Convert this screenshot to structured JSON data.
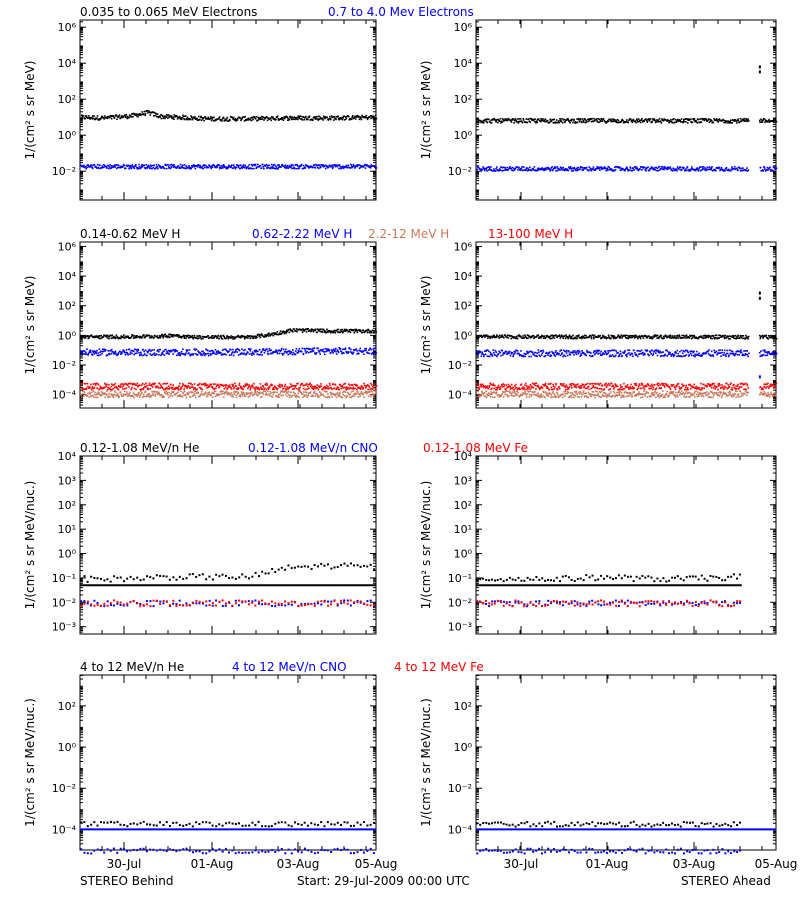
{
  "colors": {
    "black": "#000000",
    "blue": "#0000ff",
    "red": "#ff0000",
    "salmon": "#c8785a",
    "bg": "#ffffff"
  },
  "footer": {
    "left": "STEREO Behind",
    "center": "Start: 29-Jul-2009 00:00 UTC",
    "right": "STEREO Ahead"
  },
  "chart_data": [
    {
      "type": "scatter",
      "title_segments": [
        {
          "text": "0.035 to 0.065 MeV Electrons",
          "color": "#000000"
        },
        {
          "text": "0.7 to 4.0 Mev Electrons",
          "color": "#0000ff"
        }
      ],
      "ylabel": "1/(cm² s sr MeV)",
      "y_scale": "log",
      "y_exp_range": [
        -3.6,
        6.4
      ],
      "y_tick_labels": [
        {
          "exp": -2,
          "label": "10⁻²"
        },
        {
          "exp": 0,
          "label": "10⁰"
        },
        {
          "exp": 2,
          "label": "10²"
        },
        {
          "exp": 4,
          "label": "10⁴"
        },
        {
          "exp": 6,
          "label": "10⁶"
        }
      ],
      "x_tick_labels": [
        "30-Jul",
        "01-Aug",
        "03-Aug",
        "05-Aug"
      ],
      "x_range_days": [
        0,
        7
      ],
      "panels": [
        {
          "name": "STEREO Behind",
          "series": [
            {
              "name": "0.035 to 0.065 MeV Electrons",
              "color": "#000000",
              "x": [
                0,
                0.6,
                1.2,
                1.6,
                1.9,
                2.3,
                3,
                4,
                5,
                6,
                7
              ],
              "y": [
                11,
                10,
                13,
                20,
                12,
                11,
                9,
                9,
                10,
                10,
                11
              ]
            },
            {
              "name": "0.7 to 4.0 Mev Electrons",
              "color": "#0000ff",
              "x": [
                0,
                1,
                2,
                3,
                4,
                5,
                6,
                7
              ],
              "y": [
                0.02,
                0.02,
                0.02,
                0.02,
                0.02,
                0.02,
                0.02,
                0.02
              ]
            }
          ]
        },
        {
          "name": "STEREO Ahead",
          "gap": [
            6.35,
            6.6
          ],
          "series": [
            {
              "name": "0.035 to 0.065 MeV Electrons",
              "color": "#000000",
              "x": [
                0,
                1,
                2,
                3,
                4,
                5,
                6,
                6.3,
                6.65,
                7
              ],
              "y": [
                7,
                7,
                7,
                7,
                7,
                7,
                7,
                7,
                7,
                6.5
              ],
              "outliers": [
                [
                  6.6,
                  7500
                ],
                [
                  6.6,
                  4000
                ]
              ]
            },
            {
              "name": "0.7 to 4.0 Mev Electrons",
              "color": "#0000ff",
              "x": [
                0,
                1,
                2,
                3,
                4,
                5,
                6,
                6.3,
                6.65,
                7
              ],
              "y": [
                0.015,
                0.015,
                0.015,
                0.015,
                0.015,
                0.015,
                0.015,
                0.015,
                0.015,
                0.015
              ]
            }
          ]
        }
      ]
    },
    {
      "type": "scatter",
      "title_segments": [
        {
          "text": "0.14-0.62 MeV H",
          "color": "#000000"
        },
        {
          "text": "0.62-2.22 MeV H",
          "color": "#0000ff"
        },
        {
          "text": "2.2-12 MeV H",
          "color": "#c8785a"
        },
        {
          "text": "13-100 MeV H",
          "color": "#ff0000"
        }
      ],
      "ylabel": "1/(cm² s sr MeV)",
      "y_scale": "log",
      "y_exp_range": [
        -4.9,
        6.3
      ],
      "y_tick_labels": [
        {
          "exp": -4,
          "label": "10⁻⁴"
        },
        {
          "exp": -2,
          "label": "10⁻²"
        },
        {
          "exp": 0,
          "label": "10⁰"
        },
        {
          "exp": 2,
          "label": "10²"
        },
        {
          "exp": 4,
          "label": "10⁴"
        },
        {
          "exp": 6,
          "label": "10⁶"
        }
      ],
      "x_tick_labels": [
        "30-Jul",
        "01-Aug",
        "03-Aug",
        "05-Aug"
      ],
      "x_range_days": [
        0,
        7
      ],
      "panels": [
        {
          "name": "STEREO Behind",
          "series": [
            {
              "name": "0.14-0.62 MeV H",
              "color": "#000000",
              "x": [
                0,
                1,
                2,
                2.2,
                2.5,
                3,
                4,
                4.5,
                5,
                6,
                7
              ],
              "y": [
                0.9,
                0.9,
                1.0,
                1.2,
                0.9,
                0.85,
                0.85,
                1.3,
                2.5,
                2.2,
                2.2
              ]
            },
            {
              "name": "0.62-2.22 MeV H",
              "color": "#0000ff",
              "x": [
                0,
                1,
                2,
                3,
                4,
                5,
                6,
                7
              ],
              "y": [
                0.08,
                0.08,
                0.08,
                0.08,
                0.085,
                0.09,
                0.1,
                0.1
              ]
            },
            {
              "name": "13-100 MeV H",
              "color": "#ff0000",
              "x": [
                0,
                1,
                2,
                3,
                4,
                5,
                6,
                7
              ],
              "y": [
                0.0004,
                0.0004,
                0.0004,
                0.0004,
                0.0004,
                0.0004,
                0.0004,
                0.0004
              ]
            },
            {
              "name": "2.2-12 MeV H",
              "color": "#c8785a",
              "x": [
                0,
                1,
                2,
                3,
                4,
                5,
                6,
                7
              ],
              "y": [
                0.00012,
                0.00012,
                0.00012,
                0.00012,
                0.00012,
                0.00012,
                0.00012,
                0.00012
              ]
            }
          ]
        },
        {
          "name": "STEREO Ahead",
          "gap": [
            6.35,
            6.6
          ],
          "series": [
            {
              "name": "0.14-0.62 MeV H",
              "color": "#000000",
              "x": [
                0,
                1,
                2,
                3,
                4,
                5,
                6,
                6.3,
                6.65,
                7
              ],
              "y": [
                0.9,
                0.9,
                0.9,
                0.9,
                0.9,
                0.9,
                0.85,
                0.85,
                0.85,
                0.85
              ],
              "outliers": [
                [
                  6.6,
                  900
                ],
                [
                  6.6,
                  400
                ]
              ]
            },
            {
              "name": "0.62-2.22 MeV H",
              "color": "#0000ff",
              "x": [
                0,
                1,
                2,
                3,
                4,
                5,
                6,
                6.3,
                6.65,
                7
              ],
              "y": [
                0.07,
                0.07,
                0.07,
                0.07,
                0.07,
                0.07,
                0.07,
                0.07,
                0.07,
                0.07
              ],
              "outliers": [
                [
                  6.6,
                  0.002
                ]
              ]
            },
            {
              "name": "13-100 MeV H",
              "color": "#ff0000",
              "x": [
                0,
                1,
                2,
                3,
                4,
                5,
                6,
                6.3,
                6.65,
                7
              ],
              "y": [
                0.0004,
                0.0004,
                0.0004,
                0.0004,
                0.0004,
                0.0004,
                0.0004,
                0.0004,
                0.0004,
                0.0004
              ]
            },
            {
              "name": "2.2-12 MeV H",
              "color": "#c8785a",
              "x": [
                0,
                1,
                2,
                3,
                4,
                5,
                6,
                6.3,
                6.65,
                7
              ],
              "y": [
                0.00012,
                0.00012,
                0.00012,
                0.00012,
                0.00012,
                0.00012,
                0.00012,
                0.00012,
                0.00012,
                0.00012
              ]
            }
          ]
        }
      ]
    },
    {
      "type": "scatter",
      "title_segments": [
        {
          "text": "0.12-1.08 MeV/n He",
          "color": "#000000"
        },
        {
          "text": "0.12-1.08 MeV/n CNO",
          "color": "#0000ff"
        },
        {
          "text": "0.12-1.08 MeV Fe",
          "color": "#ff0000"
        }
      ],
      "ylabel": "1/(cm² s sr MeV/nuc.)",
      "y_scale": "log",
      "y_exp_range": [
        -3.3,
        4.0
      ],
      "y_tick_labels": [
        {
          "exp": -3,
          "label": "10⁻³"
        },
        {
          "exp": -2,
          "label": "10⁻²"
        },
        {
          "exp": -1,
          "label": "10⁻¹"
        },
        {
          "exp": 0,
          "label": "10⁰"
        },
        {
          "exp": 1,
          "label": "10¹"
        },
        {
          "exp": 2,
          "label": "10²"
        },
        {
          "exp": 3,
          "label": "10³"
        },
        {
          "exp": 4,
          "label": "10⁴"
        }
      ],
      "x_tick_labels": [
        "30-Jul",
        "01-Aug",
        "03-Aug",
        "05-Aug"
      ],
      "x_range_days": [
        0,
        7
      ],
      "panels": [
        {
          "name": "STEREO Behind",
          "series": [
            {
              "name": "0.12-1.08 MeV/n He (line)",
              "color": "#000000",
              "x": [
                0,
                7
              ],
              "y": [
                0.05,
                0.05
              ]
            },
            {
              "name": "0.12-1.08 MeV/n He",
              "color": "#000000",
              "x": [
                0,
                1,
                2,
                3,
                4,
                4.5,
                5,
                6,
                7
              ],
              "y": [
                0.1,
                0.1,
                0.12,
                0.12,
                0.12,
                0.2,
                0.3,
                0.35,
                0.3
              ]
            },
            {
              "name": "0.12-1.08 MeV/n CNO",
              "color": "#0000ff",
              "x": [
                0,
                1,
                2,
                3,
                4,
                5,
                6,
                7
              ],
              "y": [
                0.01,
                0.01,
                0.01,
                0.01,
                0.01,
                0.01,
                0.01,
                0.01
              ]
            },
            {
              "name": "0.12-1.08 MeV Fe",
              "color": "#ff0000",
              "x": [
                0,
                1,
                2,
                3,
                4,
                5,
                6,
                7
              ],
              "y": [
                0.01,
                0.01,
                0.01,
                0.01,
                0.01,
                0.01,
                0.01,
                0.01
              ]
            }
          ]
        },
        {
          "name": "STEREO Ahead",
          "series": [
            {
              "name": "0.12-1.08 MeV/n He (line)",
              "color": "#000000",
              "x": [
                0,
                6.2
              ],
              "y": [
                0.05,
                0.05
              ]
            },
            {
              "name": "0.12-1.08 MeV/n He",
              "color": "#000000",
              "x": [
                0,
                1,
                2,
                3,
                4,
                5,
                6,
                6.2
              ],
              "y": [
                0.1,
                0.1,
                0.1,
                0.12,
                0.1,
                0.1,
                0.12,
                0.12
              ]
            },
            {
              "name": "0.12-1.08 MeV/n CNO",
              "color": "#0000ff",
              "x": [
                0,
                1,
                2,
                3,
                4,
                5,
                6,
                6.2
              ],
              "y": [
                0.01,
                0.01,
                0.01,
                0.01,
                0.01,
                0.01,
                0.01,
                0.01
              ]
            },
            {
              "name": "0.12-1.08 MeV Fe",
              "color": "#ff0000",
              "x": [
                0,
                1,
                2,
                3,
                4,
                5,
                6,
                6.2
              ],
              "y": [
                0.01,
                0.01,
                0.01,
                0.01,
                0.01,
                0.01,
                0.01,
                0.01
              ]
            }
          ]
        }
      ]
    },
    {
      "type": "scatter",
      "title_segments": [
        {
          "text": "4 to 12 MeV/n He",
          "color": "#000000"
        },
        {
          "text": "4 to 12 MeV/n CNO",
          "color": "#0000ff"
        },
        {
          "text": "4 to 12 MeV Fe",
          "color": "#ff0000"
        }
      ],
      "ylabel": "1/(cm² s sr MeV/nuc.)",
      "y_scale": "log",
      "y_exp_range": [
        -5.0,
        3.5
      ],
      "y_tick_labels": [
        {
          "exp": -4,
          "label": "10⁻⁴"
        },
        {
          "exp": -2,
          "label": "10⁻²"
        },
        {
          "exp": 0,
          "label": "10⁰"
        },
        {
          "exp": 2,
          "label": "10²"
        }
      ],
      "x_tick_labels": [
        "30-Jul",
        "01-Aug",
        "03-Aug",
        "05-Aug"
      ],
      "x_range_days": [
        0,
        7
      ],
      "panels": [
        {
          "name": "STEREO Behind",
          "series": [
            {
              "name": "4 to 12 MeV/n CNO (line)",
              "color": "#0000ff",
              "x": [
                0,
                7
              ],
              "y": [
                0.0001,
                0.0001
              ]
            },
            {
              "name": "4 to 12 MeV/n He",
              "color": "#000000",
              "x": [
                0,
                1,
                2,
                3,
                4,
                5,
                6,
                7
              ],
              "y": [
                0.0002,
                0.0002,
                0.0002,
                0.0002,
                0.0002,
                0.0002,
                0.0002,
                0.0002
              ]
            },
            {
              "name": "4 to 12 MeV/n CNO",
              "color": "#0000ff",
              "x": [
                0,
                1,
                2,
                3,
                4,
                5,
                6,
                7
              ],
              "y": [
                1e-05,
                1e-05,
                1e-05,
                1e-05,
                1e-05,
                1e-05,
                1e-05,
                1e-05
              ]
            }
          ]
        },
        {
          "name": "STEREO Ahead",
          "series": [
            {
              "name": "4 to 12 MeV/n CNO (line)",
              "color": "#0000ff",
              "x": [
                0,
                7
              ],
              "y": [
                0.0001,
                0.0001
              ]
            },
            {
              "name": "4 to 12 MeV/n He",
              "color": "#000000",
              "x": [
                0,
                1,
                2,
                3,
                4,
                5,
                6,
                6.2
              ],
              "y": [
                0.0002,
                0.0002,
                0.0002,
                0.0002,
                0.0002,
                0.0002,
                0.0002,
                0.0002
              ]
            },
            {
              "name": "4 to 12 MeV/n CNO",
              "color": "#0000ff",
              "x": [
                0,
                1,
                2,
                3,
                4,
                5,
                6,
                6.2
              ],
              "y": [
                1e-05,
                1e-05,
                1e-05,
                1e-05,
                1e-05,
                1e-05,
                1e-05,
                1e-05
              ]
            }
          ]
        }
      ]
    }
  ]
}
